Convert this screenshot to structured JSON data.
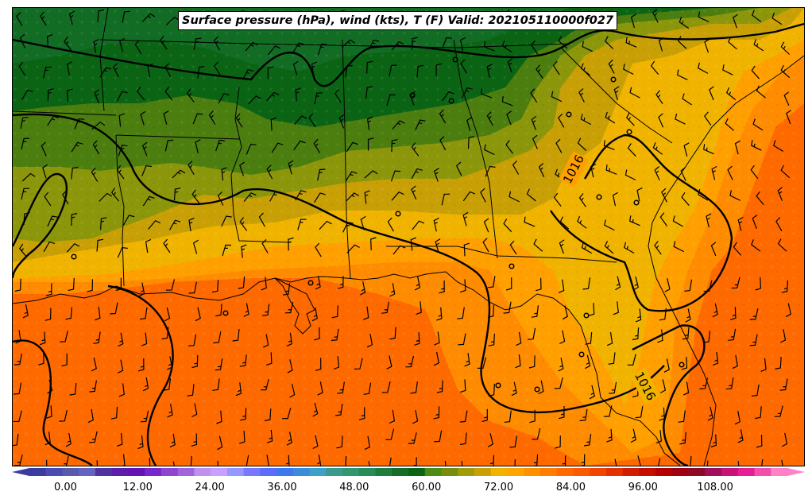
{
  "map": {
    "title": "Surface pressure (hPa), wind (kts), T (F) Valid: 202105110000f027",
    "region": "Southeastern United States and northern Gulf of Mexico",
    "fields": [
      "Surface pressure (hPa)",
      "wind (kts)",
      "T (F)"
    ],
    "valid_time": "202105110000f027",
    "isobar_labels": [
      "1016",
      "1016"
    ],
    "colorbar": {
      "tick_labels": [
        "0.00",
        "12.00",
        "24.00",
        "36.00",
        "48.00",
        "60.00",
        "72.00",
        "84.00",
        "96.00",
        "108.00"
      ],
      "tick_values": [
        0,
        12,
        24,
        36,
        48,
        60,
        72,
        84,
        96,
        108
      ],
      "min": -6,
      "max": 120,
      "step": 3,
      "extend": "both",
      "colors": [
        "#3c3ca0",
        "#4b4bb4",
        "#5a5aaa",
        "#6464be",
        "#5032a0",
        "#5a1eaa",
        "#6414b4",
        "#7828c8",
        "#8c46d2",
        "#a064dc",
        "#be91f0",
        "#c8a0ff",
        "#9696ff",
        "#7878ff",
        "#5a6efa",
        "#3c78f0",
        "#3c8cdc",
        "#3ca0c8",
        "#3c9a8a",
        "#32966e",
        "#288c5a",
        "#1e7d3c",
        "#146e28",
        "#0a6414",
        "#4b8c14",
        "#788c0f",
        "#a09b0a",
        "#c8a005",
        "#f0b400",
        "#ffa500",
        "#ff9100",
        "#ff7d00",
        "#ff6900",
        "#fa5a00",
        "#f04600",
        "#e13200",
        "#d21e00",
        "#c30f00",
        "#b40000",
        "#a00014",
        "#8c0a28",
        "#a0105a",
        "#c81478",
        "#e61e96",
        "#f050aa",
        "#ff82c8"
      ]
    },
    "temperature_colors": {
      "t58": "#0a6414",
      "t61": "#4b7d0f",
      "t64": "#8c960a",
      "t67": "#c8a005",
      "t70": "#f0b400",
      "t73": "#ffa000",
      "t76": "#ff8c00",
      "t79": "#ff6a00"
    }
  }
}
